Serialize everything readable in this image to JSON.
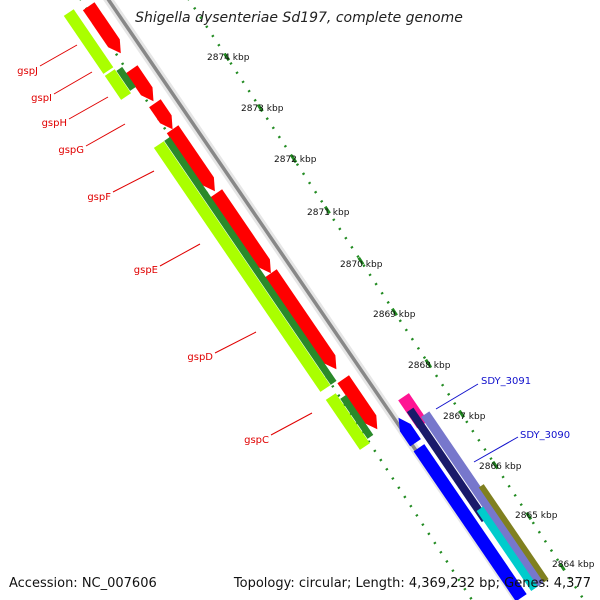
{
  "title": "Shigella dysenteriae Sd197, complete genome",
  "footer": {
    "accession": "Accession: NC_007606",
    "topology": "Topology: circular; Length: 4,369,232 bp; Genes: 4,377"
  },
  "kbp_labels": [
    "2874 kbp",
    "2873 kbp",
    "2872 kbp",
    "2871 kbp",
    "2870 kbp",
    "2869 kbp",
    "2868 kbp",
    "2867 kbp",
    "2866 kbp",
    "2865 kbp",
    "2864 kbp"
  ],
  "genes_forward": [
    {
      "name": "gspJ"
    },
    {
      "name": "gspI"
    },
    {
      "name": "gspH"
    },
    {
      "name": "gspG"
    },
    {
      "name": "gspF"
    },
    {
      "name": "gspE"
    },
    {
      "name": "gspD"
    },
    {
      "name": "gspC"
    }
  ],
  "genes_reverse": [
    {
      "name": "SDY_3091"
    },
    {
      "name": "SDY_3090"
    }
  ],
  "colors": {
    "cds_forward": "#ff0000",
    "cds_reverse": "#0000ff",
    "pseudo": "#ff1493",
    "cog_lime": "#aaff00",
    "cog_green": "#2a8a2a",
    "cog_dark": "#1a1a6a",
    "cog_purple": "#7777cc",
    "cog_cyan": "#00cccc",
    "cog_olive": "#808020",
    "backbone": "#888888",
    "ticks": "#228b22"
  }
}
